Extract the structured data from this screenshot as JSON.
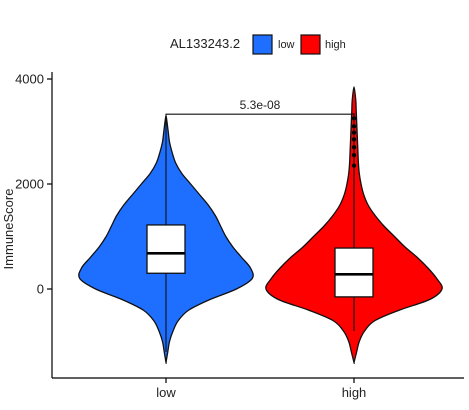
{
  "chart_data": {
    "type": "violin",
    "ylabel": "ImmuneScore",
    "xlabel": "",
    "ylim": [
      -1700,
      4150
    ],
    "yticks": [
      0,
      2000,
      4000
    ],
    "yticklabels": [
      "0",
      "2000",
      "4000"
    ],
    "categories": [
      "low",
      "high"
    ],
    "legend": {
      "title": "AL133243.2",
      "position": "top",
      "entries": [
        {
          "label": "low",
          "color": "#1E6FFF"
        },
        {
          "label": "high",
          "color": "#FF0000"
        }
      ]
    },
    "series": [
      {
        "name": "low",
        "color": "#1E6FFF",
        "box": {
          "q1": 300,
          "median": 680,
          "q3": 1220,
          "whisker_low": -1200,
          "whisker_high": 3300
        },
        "violin_min": -1400,
        "violin_max": 3300,
        "outliers": [],
        "density": [
          [
            -1400,
            0.0
          ],
          [
            -1200,
            0.02
          ],
          [
            -1000,
            0.04
          ],
          [
            -800,
            0.08
          ],
          [
            -600,
            0.14
          ],
          [
            -400,
            0.26
          ],
          [
            -200,
            0.5
          ],
          [
            0,
            0.8
          ],
          [
            200,
            0.98
          ],
          [
            400,
            0.96
          ],
          [
            600,
            0.86
          ],
          [
            800,
            0.76
          ],
          [
            1000,
            0.68
          ],
          [
            1200,
            0.62
          ],
          [
            1400,
            0.56
          ],
          [
            1600,
            0.48
          ],
          [
            1800,
            0.38
          ],
          [
            2000,
            0.28
          ],
          [
            2200,
            0.18
          ],
          [
            2400,
            0.11
          ],
          [
            2600,
            0.07
          ],
          [
            2800,
            0.04
          ],
          [
            3000,
            0.025
          ],
          [
            3200,
            0.01
          ],
          [
            3300,
            0.0
          ]
        ]
      },
      {
        "name": "high",
        "color": "#FF0000",
        "box": {
          "q1": -150,
          "median": 280,
          "q3": 780,
          "whisker_low": -800,
          "whisker_high": 3350
        },
        "violin_min": -1400,
        "violin_max": 3850,
        "outliers": [
          2350,
          2550,
          2700,
          2850,
          2980,
          3100,
          3250
        ],
        "density": [
          [
            -1400,
            0.0
          ],
          [
            -1200,
            0.03
          ],
          [
            -1000,
            0.06
          ],
          [
            -800,
            0.12
          ],
          [
            -600,
            0.24
          ],
          [
            -400,
            0.52
          ],
          [
            -200,
            0.86
          ],
          [
            0,
            1.0
          ],
          [
            200,
            0.94
          ],
          [
            400,
            0.84
          ],
          [
            600,
            0.72
          ],
          [
            800,
            0.58
          ],
          [
            1000,
            0.46
          ],
          [
            1200,
            0.34
          ],
          [
            1400,
            0.24
          ],
          [
            1600,
            0.16
          ],
          [
            1800,
            0.11
          ],
          [
            2000,
            0.08
          ],
          [
            2200,
            0.06
          ],
          [
            2400,
            0.05
          ],
          [
            2600,
            0.045
          ],
          [
            2800,
            0.04
          ],
          [
            3000,
            0.035
          ],
          [
            3200,
            0.03
          ],
          [
            3400,
            0.025
          ],
          [
            3600,
            0.02
          ],
          [
            3850,
            0.0
          ]
        ]
      }
    ],
    "comparisons": [
      {
        "groups": [
          "low",
          "high"
        ],
        "label": "5.3e-08",
        "y": 3330
      }
    ]
  }
}
